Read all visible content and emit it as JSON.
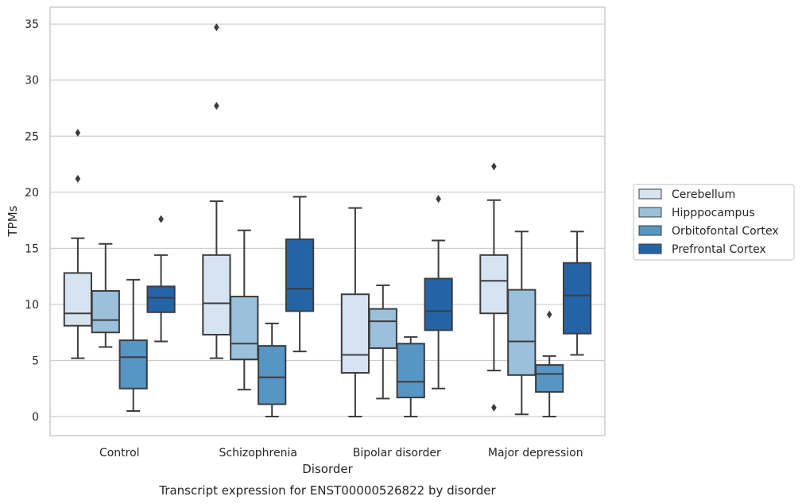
{
  "chart_data": {
    "type": "box",
    "caption": "Transcript expression for ENST00000526822 by disorder",
    "xlabel": "Disorder",
    "ylabel": "TPMs",
    "ylim": [
      -1.7,
      36.5
    ],
    "yticks": [
      0,
      5,
      10,
      15,
      20,
      25,
      30,
      35
    ],
    "grid": "horizontal",
    "legend_position": "right",
    "categories": [
      "Control",
      "Schizophrenia",
      "Bipolar disorder",
      "Major depression"
    ],
    "series": [
      {
        "name": "Cerebellum",
        "color": "#d6e4f2",
        "boxes": [
          {
            "whislo": 5.2,
            "q1": 8.1,
            "med": 9.2,
            "q3": 12.8,
            "whishi": 15.9,
            "fliers": [
              21.2,
              25.3
            ]
          },
          {
            "whislo": 5.2,
            "q1": 7.3,
            "med": 10.1,
            "q3": 14.4,
            "whishi": 19.2,
            "fliers": [
              27.7,
              34.7
            ]
          },
          {
            "whislo": 0.0,
            "q1": 3.9,
            "med": 5.5,
            "q3": 10.9,
            "whishi": 18.6,
            "fliers": []
          },
          {
            "whislo": 4.1,
            "q1": 9.2,
            "med": 12.1,
            "q3": 14.4,
            "whishi": 19.3,
            "fliers": [
              0.8,
              22.3
            ]
          }
        ]
      },
      {
        "name": "Hipppocampus",
        "color": "#9ac0db",
        "boxes": [
          {
            "whislo": 6.2,
            "q1": 7.5,
            "med": 8.6,
            "q3": 11.2,
            "whishi": 15.4,
            "fliers": []
          },
          {
            "whislo": 2.4,
            "q1": 5.1,
            "med": 6.5,
            "q3": 10.7,
            "whishi": 16.6,
            "fliers": []
          },
          {
            "whislo": 1.6,
            "q1": 6.1,
            "med": 8.5,
            "q3": 9.6,
            "whishi": 11.7,
            "fliers": []
          },
          {
            "whislo": 0.2,
            "q1": 3.7,
            "med": 6.7,
            "q3": 11.3,
            "whishi": 16.5,
            "fliers": []
          }
        ]
      },
      {
        "name": "Orbitofontal Cortex",
        "color": "#5695c4",
        "boxes": [
          {
            "whislo": 0.5,
            "q1": 2.5,
            "med": 5.3,
            "q3": 6.8,
            "whishi": 12.2,
            "fliers": []
          },
          {
            "whislo": 0.0,
            "q1": 1.1,
            "med": 3.5,
            "q3": 6.3,
            "whishi": 8.3,
            "fliers": []
          },
          {
            "whislo": 0.0,
            "q1": 1.7,
            "med": 3.1,
            "q3": 6.5,
            "whishi": 7.1,
            "fliers": []
          },
          {
            "whislo": 0.0,
            "q1": 2.2,
            "med": 3.8,
            "q3": 4.6,
            "whishi": 5.4,
            "fliers": [
              9.1
            ]
          }
        ]
      },
      {
        "name": "Prefrontal Cortex",
        "color": "#2464a6",
        "boxes": [
          {
            "whislo": 6.7,
            "q1": 9.3,
            "med": 10.6,
            "q3": 11.6,
            "whishi": 14.4,
            "fliers": [
              17.6
            ]
          },
          {
            "whislo": 5.8,
            "q1": 9.4,
            "med": 11.4,
            "q3": 15.8,
            "whishi": 19.6,
            "fliers": []
          },
          {
            "whislo": 2.5,
            "q1": 7.7,
            "med": 9.4,
            "q3": 12.3,
            "whishi": 15.7,
            "fliers": [
              19.4
            ]
          },
          {
            "whislo": 5.5,
            "q1": 7.4,
            "med": 10.8,
            "q3": 13.7,
            "whishi": 16.5,
            "fliers": []
          }
        ]
      }
    ]
  }
}
